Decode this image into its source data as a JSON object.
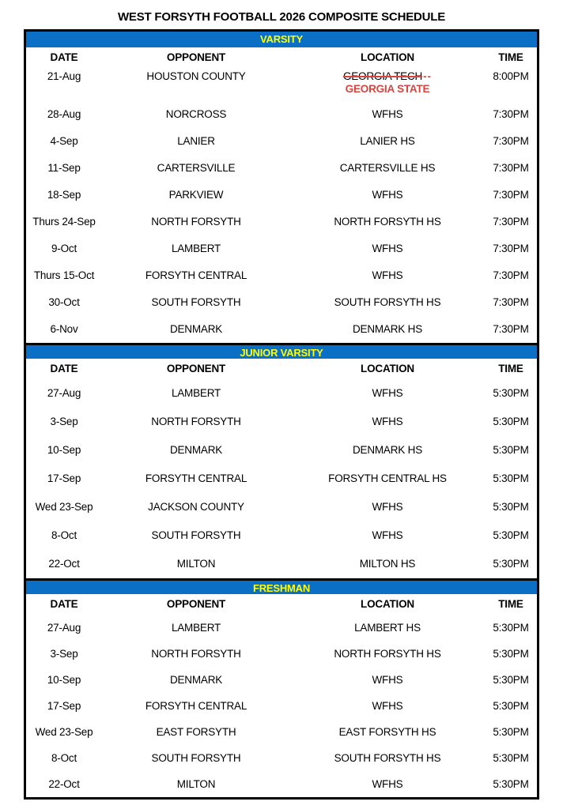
{
  "title": "WEST FORSYTH FOOTBALL 2026 COMPOSITE SCHEDULE",
  "columns": {
    "date": "DATE",
    "opponent": "OPPONENT",
    "location": "LOCATION",
    "time": "TIME"
  },
  "colors": {
    "band_background": "#0B70C5",
    "band_text": "#FFFF00",
    "correction_red": "#D9453E",
    "border_black": "#000000"
  },
  "sections": [
    {
      "name": "VARSITY",
      "rows": [
        {
          "date": "21-Aug",
          "opponent": "HOUSTON COUNTY",
          "location_struck": "GEORGIA TECH",
          "location_struck_suffix": "--",
          "location_correction": "GEORGIA STATE",
          "time": "8:00PM"
        },
        {
          "date": "28-Aug",
          "opponent": "NORCROSS",
          "location": "WFHS",
          "time": "7:30PM"
        },
        {
          "date": "4-Sep",
          "opponent": "LANIER",
          "location": "LANIER HS",
          "time": "7:30PM"
        },
        {
          "date": "11-Sep",
          "opponent": "CARTERSVILLE",
          "location": "CARTERSVILLE HS",
          "time": "7:30PM"
        },
        {
          "date": "18-Sep",
          "opponent": "PARKVIEW",
          "location": "WFHS",
          "time": "7:30PM"
        },
        {
          "date": "Thurs 24-Sep",
          "opponent": "NORTH FORSYTH",
          "location": "NORTH FORSYTH HS",
          "time": "7:30PM"
        },
        {
          "date": "9-Oct",
          "opponent": "LAMBERT",
          "location": "WFHS",
          "time": "7:30PM"
        },
        {
          "date": "Thurs 15-Oct",
          "opponent": "FORSYTH CENTRAL",
          "location": "WFHS",
          "time": "7:30PM"
        },
        {
          "date": "30-Oct",
          "opponent": "SOUTH FORSYTH",
          "location": "SOUTH FORSYTH HS",
          "time": "7:30PM"
        },
        {
          "date": "6-Nov",
          "opponent": "DENMARK",
          "location": "DENMARK HS",
          "time": "7:30PM"
        }
      ]
    },
    {
      "name": "JUNIOR VARSITY",
      "rows": [
        {
          "date": "27-Aug",
          "opponent": "LAMBERT",
          "location": "WFHS",
          "time": "5:30PM"
        },
        {
          "date": "3-Sep",
          "opponent": "NORTH FORSYTH",
          "location": "WFHS",
          "time": "5:30PM"
        },
        {
          "date": "10-Sep",
          "opponent": "DENMARK",
          "location": "DENMARK HS",
          "time": "5:30PM"
        },
        {
          "date": "17-Sep",
          "opponent": "FORSYTH CENTRAL",
          "location": "FORSYTH CENTRAL HS",
          "time": "5:30PM"
        },
        {
          "date": "Wed 23-Sep",
          "opponent": "JACKSON COUNTY",
          "location": "WFHS",
          "time": "5:30PM"
        },
        {
          "date": "8-Oct",
          "opponent": "SOUTH FORSYTH",
          "location": "WFHS",
          "time": "5:30PM"
        },
        {
          "date": "22-Oct",
          "opponent": "MILTON",
          "location": "MILTON HS",
          "time": "5:30PM"
        }
      ]
    },
    {
      "name": "FRESHMAN",
      "rows": [
        {
          "date": "27-Aug",
          "opponent": "LAMBERT",
          "location": "LAMBERT HS",
          "time": "5:30PM"
        },
        {
          "date": "3-Sep",
          "opponent": "NORTH FORSYTH",
          "location": "NORTH FORSYTH HS",
          "time": "5:30PM"
        },
        {
          "date": "10-Sep",
          "opponent": "DENMARK",
          "location": "WFHS",
          "time": "5:30PM"
        },
        {
          "date": "17-Sep",
          "opponent": "FORSYTH CENTRAL",
          "location": "WFHS",
          "time": "5:30PM"
        },
        {
          "date": "Wed 23-Sep",
          "opponent": "EAST FORSYTH",
          "location": "EAST FORSYTH HS",
          "time": "5:30PM"
        },
        {
          "date": "8-Oct",
          "opponent": "SOUTH FORSYTH",
          "location": "SOUTH FORSYTH HS",
          "time": "5:30PM"
        },
        {
          "date": "22-Oct",
          "opponent": "MILTON",
          "location": "WFHS",
          "time": "5:30PM"
        }
      ]
    }
  ]
}
